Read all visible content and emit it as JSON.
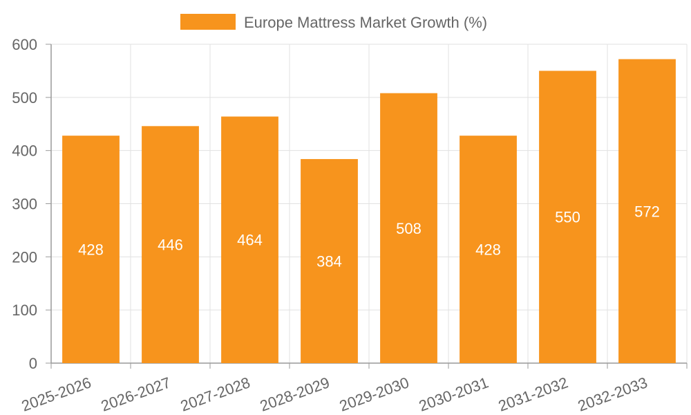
{
  "chart_data": {
    "type": "bar",
    "title": "",
    "xlabel": "",
    "ylabel": "",
    "categories": [
      "2025-2026",
      "2026-2027",
      "2027-2028",
      "2028-2029",
      "2029-2030",
      "2030-2031",
      "2031-2032",
      "2032-2033"
    ],
    "series": [
      {
        "name": "Europe Mattress Market Growth (%)",
        "values": [
          428,
          446,
          464,
          384,
          508,
          428,
          550,
          572
        ],
        "color": "#f7941d"
      }
    ],
    "ylim": [
      0,
      600
    ],
    "yticks": [
      0,
      100,
      200,
      300,
      400,
      500,
      600
    ],
    "grid": true,
    "legend": "top-center",
    "data_labels": "inside-bar-center",
    "x_tick_rotation": "rotated"
  }
}
